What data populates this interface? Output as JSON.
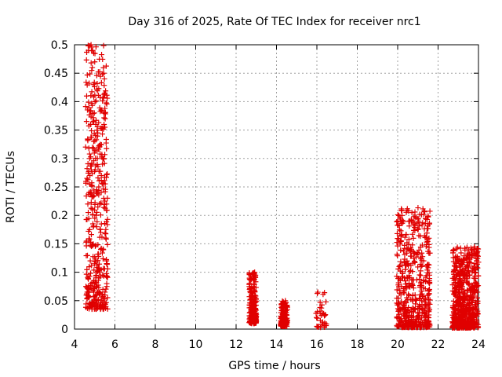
{
  "chart_data": {
    "type": "scatter",
    "title": "Day 316 of 2025, Rate Of TEC Index for receiver nrc1",
    "xlabel": "GPS time / hours",
    "ylabel": "ROTI / TECUs",
    "xlim": [
      4,
      24
    ],
    "ylim": [
      0,
      0.5
    ],
    "xticks": [
      "4",
      "6",
      "8",
      "10",
      "12",
      "14",
      "16",
      "18",
      "20",
      "22",
      "24"
    ],
    "yticks": [
      "0",
      "0.05",
      "0.1",
      "0.15",
      "0.2",
      "0.25",
      "0.3",
      "0.35",
      "0.4",
      "0.45",
      "0.5"
    ],
    "grid": true,
    "marker": "plus",
    "color": "#e00000",
    "clusters": [
      {
        "x_range": [
          4.55,
          5.65
        ],
        "y_range": [
          0.035,
          0.5
        ],
        "count": 420
      },
      {
        "x_range": [
          12.65,
          13.0
        ],
        "y_range": [
          0.01,
          0.1
        ],
        "count": 220
      },
      {
        "x_range": [
          14.2,
          14.55
        ],
        "y_range": [
          0.005,
          0.05
        ],
        "count": 140
      },
      {
        "x_range": [
          15.95,
          16.5
        ],
        "y_range": [
          0.003,
          0.065
        ],
        "count": 35
      },
      {
        "x_range": [
          19.95,
          21.6
        ],
        "y_range": [
          0.003,
          0.215
        ],
        "count": 520
      },
      {
        "x_range": [
          22.7,
          24.0
        ],
        "y_range": [
          0.002,
          0.145
        ],
        "count": 650
      }
    ],
    "series": [
      {
        "x": [
          4.62,
          4.66,
          4.68,
          4.72,
          4.75,
          4.78,
          4.82,
          4.85,
          4.88,
          4.9,
          4.93,
          4.95,
          4.98,
          5.0,
          5.02,
          5.05,
          5.08,
          5.1,
          5.13,
          5.15,
          5.18,
          5.2,
          5.23,
          5.25,
          5.28,
          5.3,
          5.33,
          5.35,
          5.38,
          5.4,
          5.42,
          5.45,
          5.48,
          5.5,
          5.52,
          5.55,
          5.58,
          5.6,
          4.85,
          4.9,
          4.95,
          5.05,
          5.1,
          5.2,
          5.3,
          5.45,
          5.5,
          5.55,
          5.5
        ],
        "y": [
          0.265,
          0.22,
          0.205,
          0.24,
          0.3,
          0.12,
          0.5,
          0.455,
          0.46,
          0.49,
          0.43,
          0.33,
          0.38,
          0.47,
          0.28,
          0.36,
          0.2,
          0.18,
          0.3,
          0.345,
          0.32,
          0.25,
          0.1,
          0.22,
          0.175,
          0.14,
          0.27,
          0.05,
          0.29,
          0.3,
          0.255,
          0.45,
          0.44,
          0.415,
          0.37,
          0.16,
          0.12,
          0.075,
          0.04,
          0.08,
          0.065,
          0.12,
          0.06,
          0.09,
          0.17,
          0.23,
          0.355,
          0.175,
          0.06
        ]
      }
    ]
  }
}
